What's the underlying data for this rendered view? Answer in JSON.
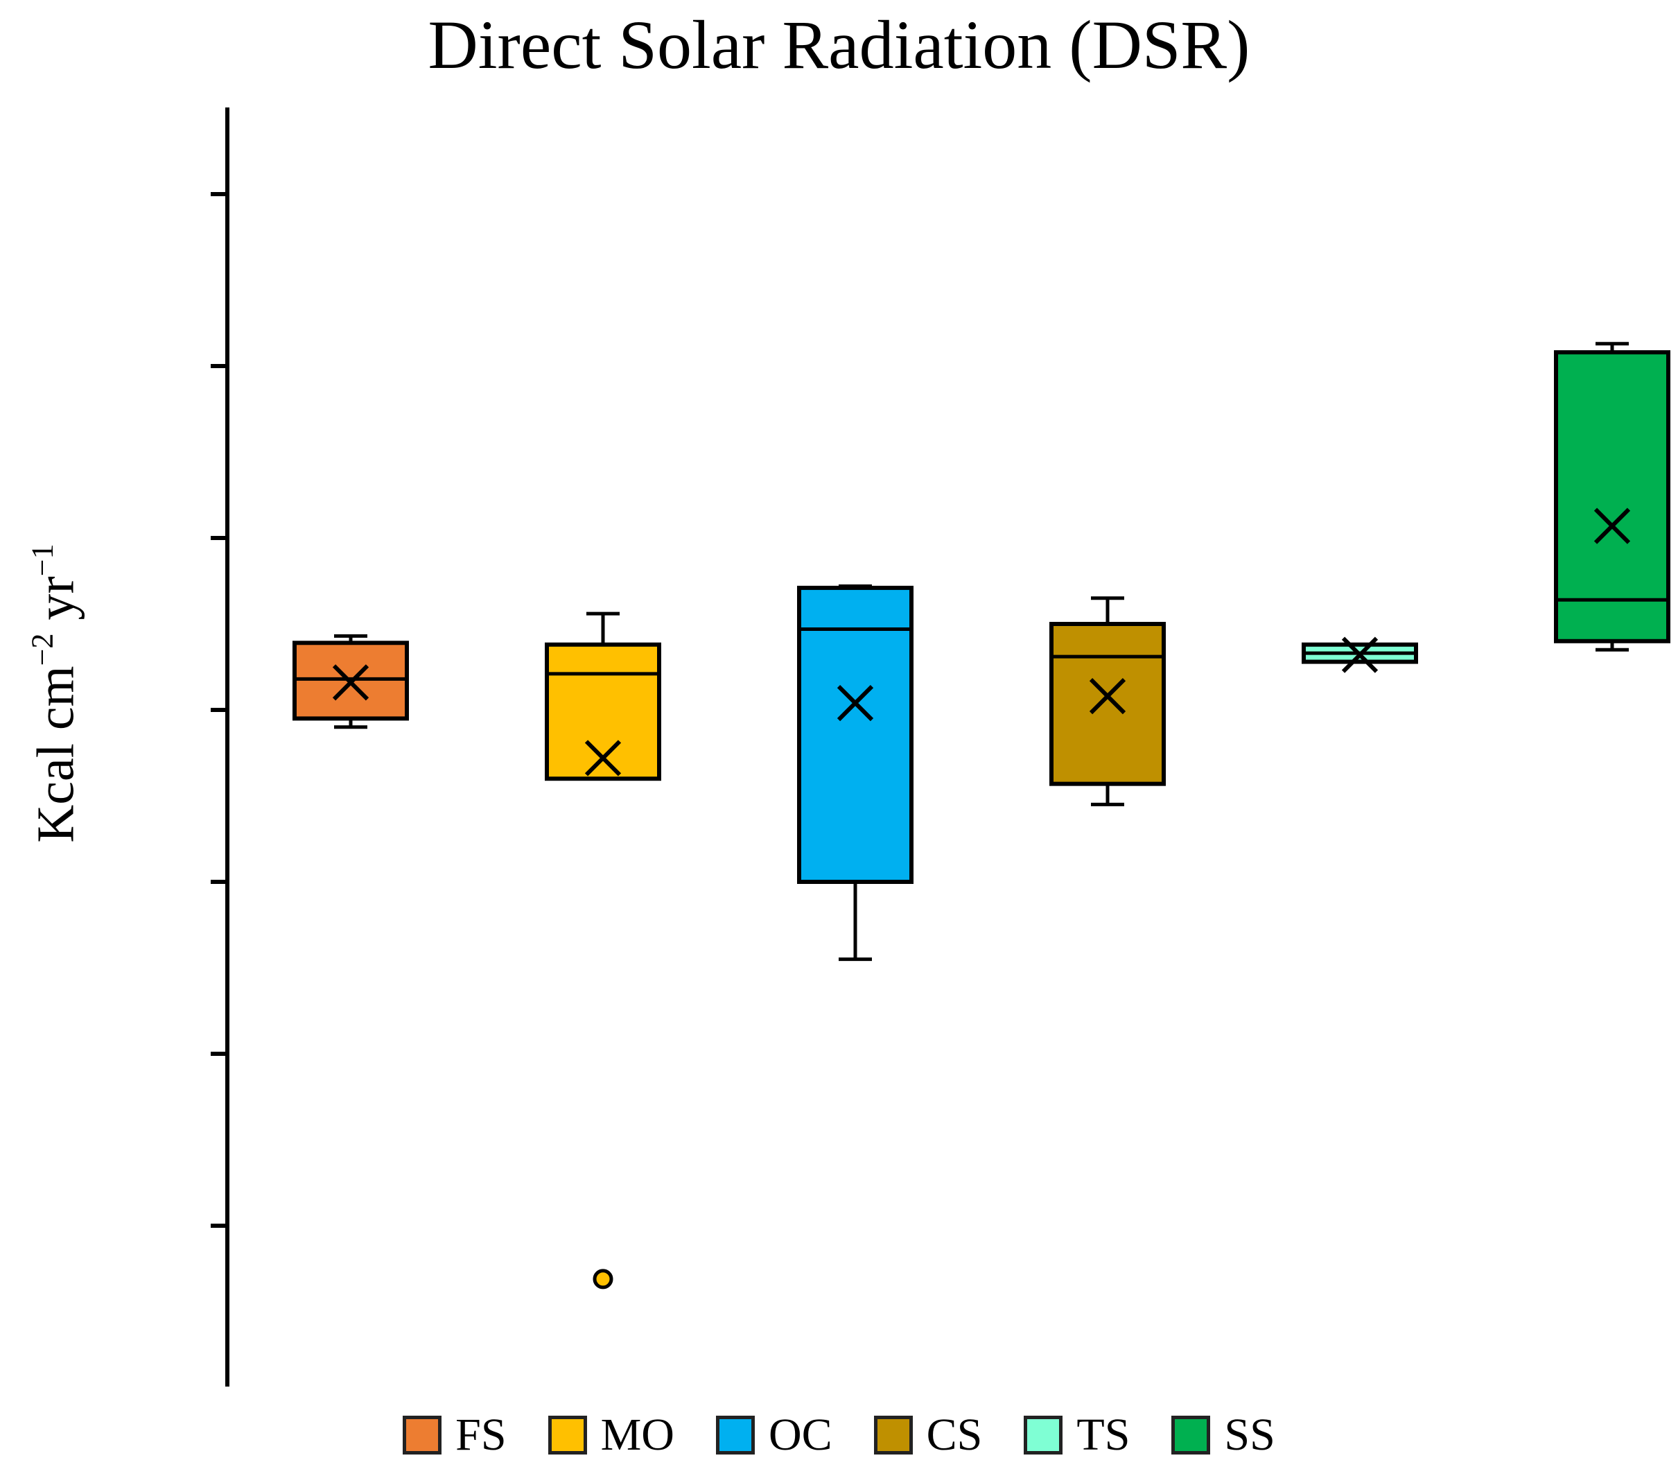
{
  "chart_data": {
    "type": "box",
    "title": "Direct Solar Radiation (DSR)",
    "ylabel": "Kcal cm",
    "ylabel_sup1": "−2",
    "ylabel_mid": " yr",
    "ylabel_sup2": "−1",
    "xlabel": "",
    "ylim": [
      0,
      7.5
    ],
    "yticks": [
      0,
      1,
      2,
      3,
      4,
      5,
      6,
      7
    ],
    "ytick_labels_visible": false,
    "grid": false,
    "legend_position": "bottom",
    "series": [
      {
        "name": "FS",
        "color": "#ED7D31",
        "min": 3.9,
        "q1": 3.95,
        "median": 4.18,
        "q3": 4.39,
        "max": 4.43,
        "mean": 4.16,
        "outliers": []
      },
      {
        "name": "MO",
        "color": "#FFC000",
        "min": 3.6,
        "q1": 3.6,
        "median": 4.21,
        "q3": 4.38,
        "max": 4.56,
        "mean": 3.72,
        "outliers": [
          0.69
        ]
      },
      {
        "name": "OC",
        "color": "#00B0F0",
        "min": 2.55,
        "q1": 3.0,
        "median": 4.47,
        "q3": 4.71,
        "max": 4.72,
        "mean": 4.04,
        "outliers": []
      },
      {
        "name": "CS",
        "color": "#BF9000",
        "min": 3.45,
        "q1": 3.57,
        "median": 4.31,
        "q3": 4.5,
        "max": 4.65,
        "mean": 4.08,
        "outliers": []
      },
      {
        "name": "TS",
        "color": "#7FFFD4",
        "min": 4.28,
        "q1": 4.28,
        "median": 4.33,
        "q3": 4.38,
        "max": 4.38,
        "mean": 4.32,
        "outliers": []
      },
      {
        "name": "SS",
        "color": "#00B050",
        "min": 4.35,
        "q1": 4.4,
        "median": 4.64,
        "q3": 6.08,
        "max": 6.13,
        "mean": 5.07,
        "outliers": []
      }
    ]
  }
}
